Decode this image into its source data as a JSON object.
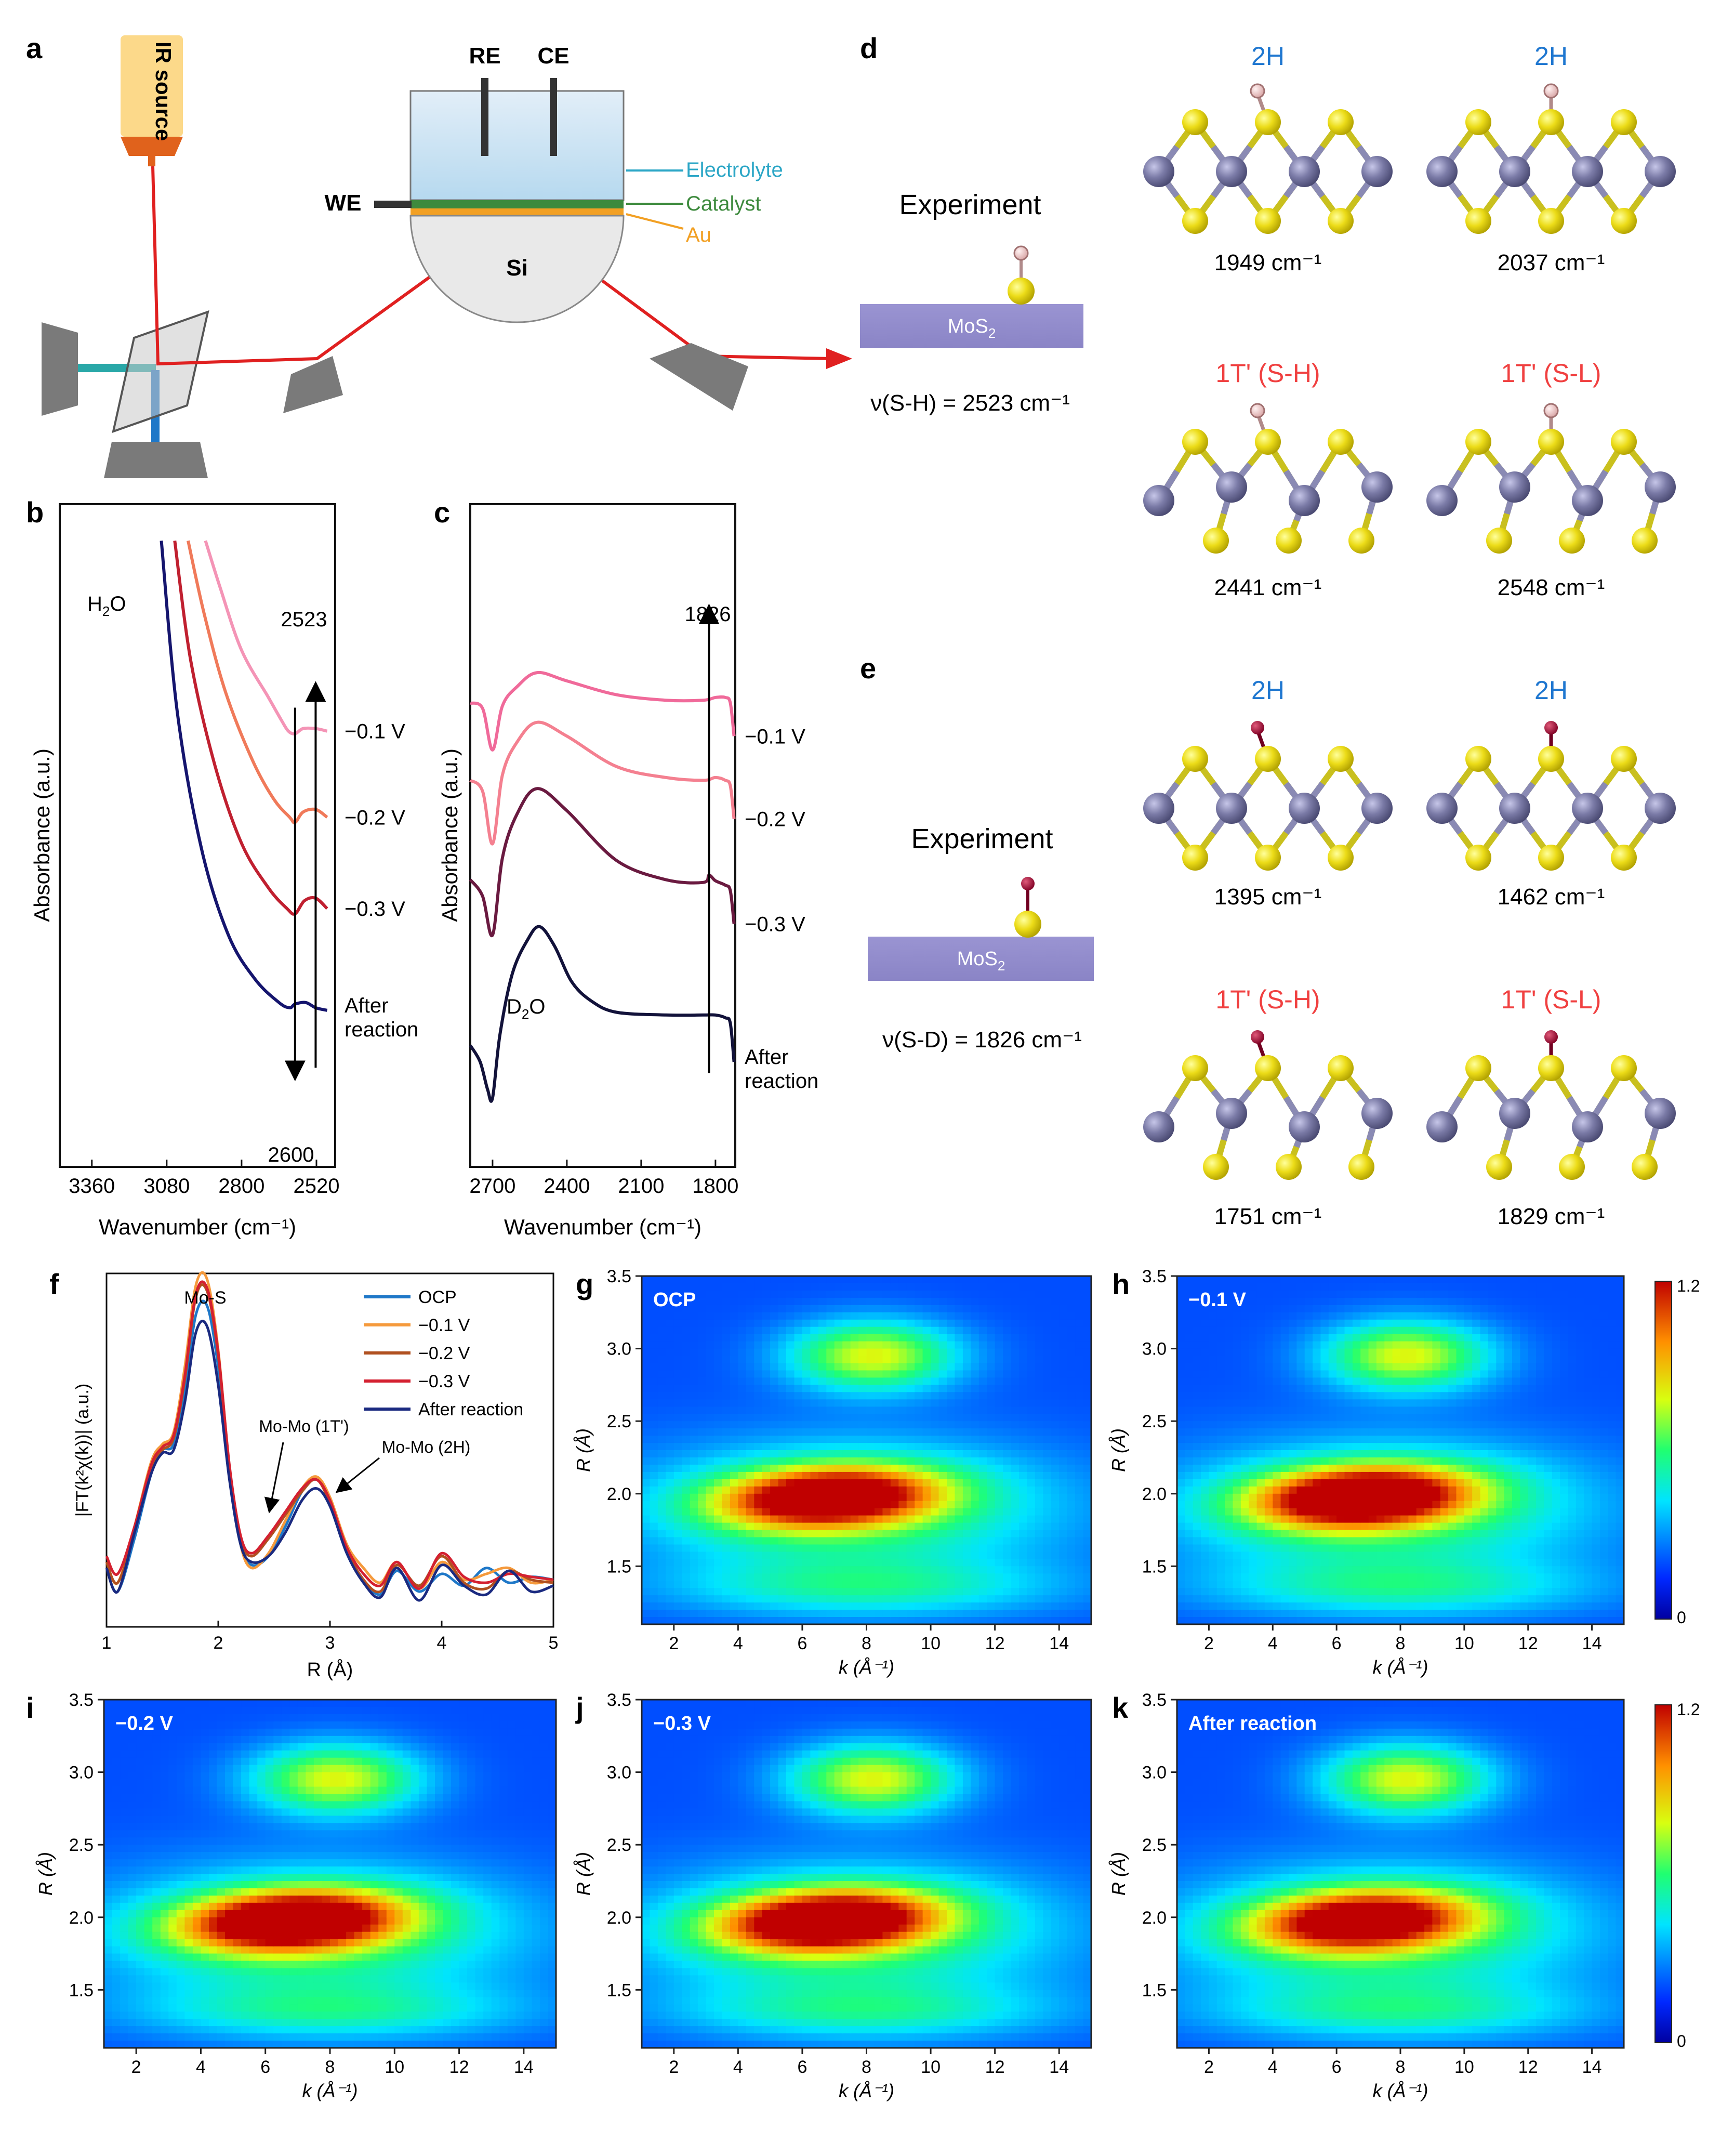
{
  "panel_letters": {
    "a": "a",
    "b": "b",
    "c": "c",
    "d": "d",
    "e": "e",
    "f": "f",
    "g": "g",
    "h": "h",
    "i": "i",
    "j": "j",
    "k": "k"
  },
  "setup": {
    "ir_source": "IR source",
    "re": "RE",
    "ce": "CE",
    "we": "WE",
    "electrolyte": "Electrolyte",
    "catalyst": "Catalyst",
    "au": "Au",
    "si": "Si",
    "colors": {
      "electrolyte": "#2ba6c6",
      "catalyst": "#3d8a3d",
      "au": "#f2a024",
      "beam": "#e02020",
      "source": "#fcd98a",
      "source_tip": "#e0621c"
    }
  },
  "structures": {
    "d": {
      "experiment_label": "Experiment",
      "slab_label": "MoS",
      "slab_sub": "2",
      "experiment_value": "ν(S-H) = 2523 cm⁻¹",
      "panels": [
        {
          "title": "2H",
          "freq": "1949 cm⁻¹",
          "title_color": "#1f77d0"
        },
        {
          "title": "2H",
          "freq": "2037 cm⁻¹",
          "title_color": "#1f77d0"
        },
        {
          "title": "1T' (S-H)",
          "freq": "2441 cm⁻¹",
          "title_color": "#f04040"
        },
        {
          "title": "1T' (S-L)",
          "freq": "2548 cm⁻¹",
          "title_color": "#f04040"
        }
      ]
    },
    "e": {
      "experiment_label": "Experiment",
      "slab_label": "MoS",
      "slab_sub": "2",
      "experiment_value": "ν(S-D) = 1826 cm⁻¹",
      "panels": [
        {
          "title": "2H",
          "freq": "1395 cm⁻¹",
          "title_color": "#1f77d0"
        },
        {
          "title": "2H",
          "freq": "1462 cm⁻¹",
          "title_color": "#1f77d0"
        },
        {
          "title": "1T' (S-H)",
          "freq": "1751 cm⁻¹",
          "title_color": "#f04040"
        },
        {
          "title": "1T' (S-L)",
          "freq": "1829 cm⁻¹",
          "title_color": "#f04040"
        }
      ]
    }
  },
  "chart_data": [
    {
      "panel": "b",
      "type": "line",
      "xlabel": "Wavenumber (cm⁻¹)",
      "ylabel": "Absorbance (a.u.)",
      "x_ticks": [
        "3360",
        "3080",
        "2800",
        "2520"
      ],
      "xlim": [
        3480,
        2450
      ],
      "annotations": {
        "water": "H",
        "water_sub": "2",
        "water_end": "O",
        "peak_up": "2523",
        "peak_down": "2600"
      },
      "series": [
        {
          "name": "−0.1 V",
          "color": "#f494b6",
          "x": [
            2935,
            2880,
            2800,
            2700,
            2650,
            2625,
            2600,
            2570,
            2523,
            2480
          ],
          "y": [
            9.5,
            8.6,
            7.4,
            6.5,
            6.05,
            5.85,
            5.8,
            5.9,
            5.9,
            5.85
          ]
        },
        {
          "name": "−0.2 V",
          "color": "#f07a5a",
          "x": [
            3000,
            2940,
            2860,
            2760,
            2680,
            2620,
            2600,
            2570,
            2523,
            2480
          ],
          "y": [
            9.5,
            8.1,
            6.6,
            5.3,
            4.55,
            4.2,
            4.1,
            4.3,
            4.35,
            4.2
          ]
        },
        {
          "name": "−0.3 V",
          "color": "#c02030",
          "x": [
            3050,
            2990,
            2900,
            2800,
            2700,
            2630,
            2600,
            2565,
            2523,
            2480
          ],
          "y": [
            9.5,
            7.2,
            5.2,
            3.7,
            2.85,
            2.45,
            2.35,
            2.6,
            2.65,
            2.45
          ]
        },
        {
          "name": "After reaction",
          "color": "#15156e",
          "x": [
            3100,
            3040,
            2950,
            2850,
            2750,
            2660,
            2620,
            2600,
            2560,
            2523,
            2480
          ],
          "y": [
            9.5,
            6.2,
            3.6,
            1.95,
            1.1,
            0.65,
            0.55,
            0.62,
            0.65,
            0.55,
            0.5
          ]
        }
      ]
    },
    {
      "panel": "c",
      "type": "line",
      "xlabel": "Wavenumber (cm⁻¹)",
      "ylabel": "Absorbance (a.u.)",
      "x_ticks": [
        "2700",
        "2400",
        "2100",
        "1800"
      ],
      "xlim": [
        2790,
        1720
      ],
      "annotations": {
        "peak": "1826",
        "d2o": "D",
        "d2o_sub": "2",
        "d2o_end": "O"
      },
      "series": [
        {
          "name": "−0.1 V",
          "color": "#f06a9a",
          "x": [
            2790,
            2740,
            2700,
            2660,
            2600,
            2520,
            2400,
            2200,
            2000,
            1850,
            1800,
            1760,
            1740,
            1725
          ],
          "y": [
            6.9,
            6.8,
            6.05,
            6.85,
            7.2,
            7.45,
            7.3,
            7.05,
            6.95,
            6.95,
            7.0,
            7.0,
            6.9,
            6.3
          ]
        },
        {
          "name": "−0.2 V",
          "color": "#f48090",
          "x": [
            2790,
            2740,
            2700,
            2660,
            2600,
            2520,
            2400,
            2200,
            2000,
            1850,
            1800,
            1760,
            1740,
            1725
          ],
          "y": [
            5.5,
            5.3,
            4.35,
            5.6,
            6.2,
            6.55,
            6.3,
            5.75,
            5.55,
            5.5,
            5.55,
            5.5,
            5.4,
            4.8
          ]
        },
        {
          "name": "−0.3 V",
          "color": "#6a1a40",
          "x": [
            2790,
            2740,
            2700,
            2660,
            2600,
            2520,
            2400,
            2200,
            2000,
            1850,
            1826,
            1800,
            1760,
            1740,
            1725
          ],
          "y": [
            3.7,
            3.4,
            2.7,
            4.1,
            4.9,
            5.35,
            4.95,
            4.05,
            3.7,
            3.65,
            3.78,
            3.68,
            3.6,
            3.5,
            2.9
          ]
        },
        {
          "name": "After reaction",
          "color": "#12123a",
          "x": [
            2790,
            2750,
            2720,
            2700,
            2670,
            2620,
            2560,
            2510,
            2450,
            2380,
            2300,
            2200,
            2000,
            1850,
            1800,
            1760,
            1740,
            1725
          ],
          "y": [
            0.7,
            0.4,
            -0.1,
            -0.25,
            0.9,
            2.0,
            2.6,
            2.85,
            2.5,
            1.85,
            1.5,
            1.3,
            1.25,
            1.25,
            1.25,
            1.2,
            1.1,
            0.4
          ]
        }
      ]
    },
    {
      "panel": "f",
      "type": "line",
      "xlabel": "R (Å)",
      "ylabel": "|FT(k²χ(k))| (a.u.)",
      "x_ticks": [
        "1",
        "2",
        "3",
        "4",
        "5"
      ],
      "xlim": [
        1,
        5
      ],
      "ylim": [
        -0.1,
        1.1
      ],
      "annotations": {
        "mos": "Mo-S",
        "momo1": "Mo-Mo (1T')",
        "momo2": "Mo-Mo (2H)"
      },
      "legend_position": "top-right",
      "series": [
        {
          "name": "OCP",
          "color": "#1f78c8",
          "x": [
            1,
            1.1,
            1.25,
            1.4,
            1.5,
            1.6,
            1.7,
            1.8,
            1.9,
            2.0,
            2.1,
            2.2,
            2.3,
            2.45,
            2.6,
            2.75,
            2.88,
            3.0,
            3.15,
            3.3,
            3.45,
            3.6,
            3.8,
            4.0,
            4.2,
            4.4,
            4.6,
            4.8,
            5.0
          ],
          "y": [
            0.1,
            0.02,
            0.2,
            0.42,
            0.5,
            0.52,
            0.7,
            0.96,
            0.99,
            0.78,
            0.42,
            0.18,
            0.11,
            0.14,
            0.24,
            0.36,
            0.4,
            0.33,
            0.16,
            0.06,
            0.01,
            0.09,
            0.02,
            0.08,
            0.04,
            0.1,
            0.05,
            0.07,
            0.06
          ]
        },
        {
          "name": "−0.1 V",
          "color": "#f59a3c",
          "x": [
            1,
            1.1,
            1.25,
            1.4,
            1.5,
            1.6,
            1.7,
            1.8,
            1.9,
            2.0,
            2.1,
            2.2,
            2.3,
            2.45,
            2.6,
            2.75,
            2.88,
            3.0,
            3.15,
            3.3,
            3.45,
            3.6,
            3.8,
            4.0,
            4.2,
            4.4,
            4.6,
            4.8,
            5.0
          ],
          "y": [
            0.12,
            0.05,
            0.24,
            0.46,
            0.52,
            0.56,
            0.78,
            1.06,
            1.08,
            0.84,
            0.44,
            0.18,
            0.1,
            0.15,
            0.26,
            0.37,
            0.41,
            0.34,
            0.18,
            0.1,
            0.05,
            0.12,
            0.03,
            0.12,
            0.06,
            0.08,
            0.1,
            0.05,
            0.06
          ]
        },
        {
          "name": "−0.2 V",
          "color": "#b05020",
          "x": [
            1,
            1.1,
            1.25,
            1.4,
            1.5,
            1.6,
            1.7,
            1.8,
            1.9,
            2.0,
            2.1,
            2.2,
            2.3,
            2.45,
            2.6,
            2.75,
            2.88,
            3.0,
            3.15,
            3.3,
            3.45,
            3.6,
            3.8,
            4.0,
            4.2,
            4.4,
            4.6,
            4.8,
            5.0
          ],
          "y": [
            0.12,
            0.05,
            0.22,
            0.44,
            0.5,
            0.54,
            0.74,
            1.02,
            1.04,
            0.82,
            0.44,
            0.2,
            0.14,
            0.2,
            0.28,
            0.36,
            0.4,
            0.32,
            0.16,
            0.06,
            0.02,
            0.11,
            0.04,
            0.14,
            0.05,
            0.03,
            0.09,
            0.06,
            0.05
          ]
        },
        {
          "name": "−0.3 V",
          "color": "#d42030",
          "x": [
            1,
            1.1,
            1.25,
            1.4,
            1.5,
            1.6,
            1.7,
            1.8,
            1.9,
            2.0,
            2.1,
            2.2,
            2.3,
            2.45,
            2.6,
            2.75,
            2.88,
            3.0,
            3.15,
            3.3,
            3.45,
            3.6,
            3.8,
            4.0,
            4.2,
            4.4,
            4.6,
            4.8,
            5.0
          ],
          "y": [
            0.14,
            0.08,
            0.24,
            0.45,
            0.51,
            0.55,
            0.75,
            1.03,
            1.05,
            0.83,
            0.45,
            0.21,
            0.15,
            0.21,
            0.29,
            0.37,
            0.4,
            0.33,
            0.17,
            0.08,
            0.04,
            0.12,
            0.03,
            0.15,
            0.07,
            0.05,
            0.08,
            0.07,
            0.06
          ]
        },
        {
          "name": "After reaction",
          "color": "#1a2a80",
          "x": [
            1,
            1.1,
            1.25,
            1.4,
            1.5,
            1.6,
            1.7,
            1.8,
            1.9,
            2.0,
            2.1,
            2.2,
            2.3,
            2.45,
            2.6,
            2.75,
            2.88,
            3.0,
            3.15,
            3.3,
            3.45,
            3.6,
            3.8,
            4.0,
            4.2,
            4.4,
            4.6,
            4.8,
            5.0
          ],
          "y": [
            0.1,
            0.02,
            0.22,
            0.42,
            0.49,
            0.5,
            0.66,
            0.9,
            0.92,
            0.72,
            0.4,
            0.18,
            0.12,
            0.14,
            0.22,
            0.33,
            0.37,
            0.31,
            0.15,
            0.05,
            0.0,
            0.1,
            -0.01,
            0.11,
            0.04,
            0.01,
            0.09,
            0.02,
            0.04
          ]
        }
      ]
    },
    {
      "panel": "g",
      "type": "heatmap",
      "label": "OCP",
      "xlabel": "k (Å⁻¹)",
      "ylabel": "R (Å)",
      "x_ticks": [
        "2",
        "4",
        "6",
        "8",
        "10",
        "12",
        "14"
      ],
      "y_ticks": [
        "1.5",
        "2.0",
        "2.5",
        "3.0",
        "3.5"
      ],
      "xlim": [
        1,
        15
      ],
      "ylim": [
        1.1,
        3.5
      ],
      "intensity": 1.0
    },
    {
      "panel": "h",
      "type": "heatmap",
      "label": "−0.1 V",
      "xlabel": "k (Å⁻¹)",
      "ylabel": "R (Å)",
      "x_ticks": [
        "2",
        "4",
        "6",
        "8",
        "10",
        "12",
        "14"
      ],
      "y_ticks": [
        "1.5",
        "2.0",
        "2.5",
        "3.0",
        "3.5"
      ],
      "xlim": [
        1,
        15
      ],
      "ylim": [
        1.1,
        3.5
      ],
      "intensity": 1.08,
      "colorbar": {
        "max": "1.2",
        "min": "0"
      }
    },
    {
      "panel": "i",
      "type": "heatmap",
      "label": "−0.2 V",
      "xlabel": "k (Å⁻¹)",
      "ylabel": "R (Å)",
      "x_ticks": [
        "2",
        "4",
        "6",
        "8",
        "10",
        "12",
        "14"
      ],
      "y_ticks": [
        "1.5",
        "2.0",
        "2.5",
        "3.0",
        "3.5"
      ],
      "xlim": [
        1,
        15
      ],
      "ylim": [
        1.1,
        3.5
      ],
      "intensity": 1.08
    },
    {
      "panel": "j",
      "type": "heatmap",
      "label": "−0.3 V",
      "xlabel": "k (Å⁻¹)",
      "ylabel": "R (Å)",
      "x_ticks": [
        "2",
        "4",
        "6",
        "8",
        "10",
        "12",
        "14"
      ],
      "y_ticks": [
        "1.5",
        "2.0",
        "2.5",
        "3.0",
        "3.5"
      ],
      "xlim": [
        1,
        15
      ],
      "ylim": [
        1.1,
        3.5
      ],
      "intensity": 1.06
    },
    {
      "panel": "k",
      "type": "heatmap",
      "label": "After reaction",
      "xlabel": "k (Å⁻¹)",
      "ylabel": "R (Å)",
      "x_ticks": [
        "2",
        "4",
        "6",
        "8",
        "10",
        "12",
        "14"
      ],
      "y_ticks": [
        "1.5",
        "2.0",
        "2.5",
        "3.0",
        "3.5"
      ],
      "xlim": [
        1,
        15
      ],
      "ylim": [
        1.1,
        3.5
      ],
      "intensity": 0.94,
      "colorbar": {
        "max": "1.2",
        "min": "0"
      }
    }
  ]
}
